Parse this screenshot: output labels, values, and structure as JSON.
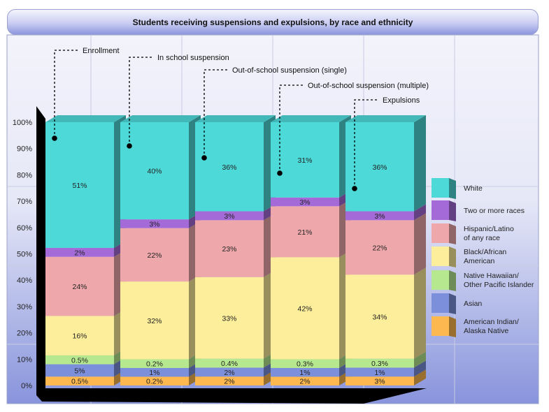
{
  "chart_data": {
    "type": "bar",
    "stacked": true,
    "title": "Students receiving suspensions and expulsions, by race and ethnicity",
    "xlabel": "",
    "ylabel": "",
    "ylim": [
      0,
      100
    ],
    "yticks": [
      "0%",
      "10%",
      "20%",
      "30%",
      "40%",
      "50%",
      "60%",
      "70%",
      "80%",
      "90%",
      "100%"
    ],
    "grid": true,
    "legend_position": "right",
    "categories": [
      "Enrollment",
      "In school suspension",
      "Out-of-school suspension (single)",
      "Out-of-school suspension (multiple)",
      "Expulsions"
    ],
    "series": [
      {
        "name": "American Indian/ Alaska Native",
        "legend_lines": [
          "American Indian/",
          "Alaska Native"
        ],
        "color": "#fdb94f",
        "values": [
          0.5,
          0.2,
          2,
          2,
          3
        ],
        "labels": [
          "0.5%",
          "0.2%",
          "2%",
          "2%",
          "3%"
        ]
      },
      {
        "name": "Asian",
        "legend_lines": [
          "Asian"
        ],
        "color": "#7b8fdb",
        "values": [
          5,
          1,
          2,
          1,
          1
        ],
        "labels": [
          "5%",
          "1%",
          "2%",
          "1%",
          "1%"
        ]
      },
      {
        "name": "Native Hawaiian/ Other Pacific Islander",
        "legend_lines": [
          "Native Hawaiian/",
          "Other Pacific Islander"
        ],
        "color": "#b6e98f",
        "values": [
          0.5,
          0.2,
          0.4,
          0.3,
          0.3
        ],
        "labels": [
          "0.5%",
          "0.2%",
          "0.4%",
          "0.3%",
          "0.3%"
        ]
      },
      {
        "name": "Black/African American",
        "legend_lines": [
          "Black/African",
          "American"
        ],
        "color": "#fdee9b",
        "values": [
          16,
          32,
          33,
          42,
          34
        ],
        "labels": [
          "16%",
          "32%",
          "33%",
          "42%",
          "34%"
        ]
      },
      {
        "name": "Hispanic/Latino of any race",
        "legend_lines": [
          "Hispanic/Latino",
          "of any race"
        ],
        "color": "#eea8ab",
        "values": [
          24,
          22,
          23,
          21,
          22
        ],
        "labels": [
          "24%",
          "22%",
          "23%",
          "21%",
          "22%"
        ]
      },
      {
        "name": "Two or more races",
        "legend_lines": [
          "Two or more races"
        ],
        "color": "#a46bd8",
        "values": [
          2,
          3,
          3,
          3,
          3
        ],
        "labels": [
          "2%",
          "3%",
          "3%",
          "3%",
          "3%"
        ]
      },
      {
        "name": "White",
        "legend_lines": [
          "White"
        ],
        "color": "#4ed9d9",
        "values": [
          51,
          40,
          36,
          31,
          36
        ],
        "labels": [
          "51%",
          "40%",
          "36%",
          "31%",
          "36%"
        ]
      }
    ]
  }
}
